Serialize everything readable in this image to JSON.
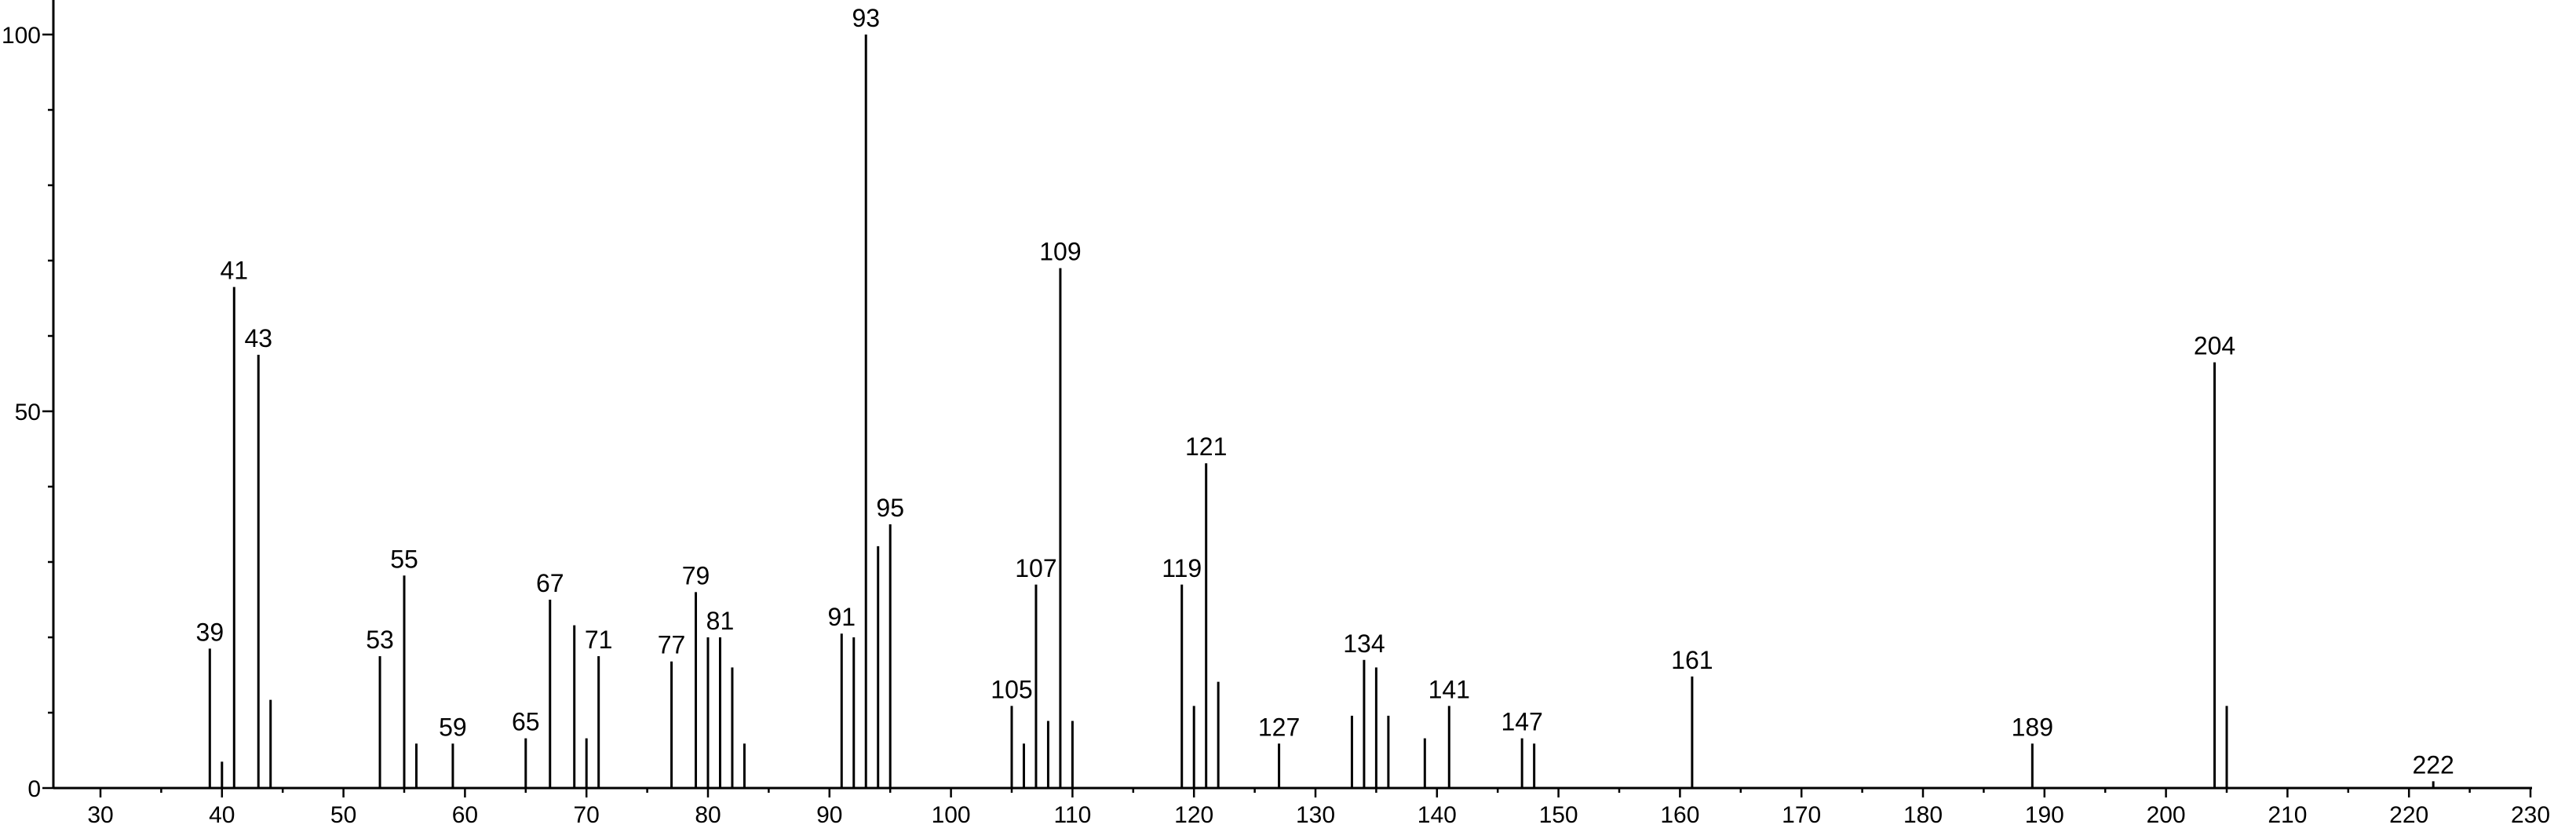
{
  "chart_data": {
    "type": "bar",
    "title": "",
    "xlabel": "",
    "ylabel": "",
    "xlim": [
      26,
      233
    ],
    "ylim": [
      0,
      104
    ],
    "x_major_ticks": [
      30,
      40,
      50,
      60,
      70,
      80,
      90,
      100,
      110,
      120,
      130,
      140,
      150,
      160,
      170,
      180,
      190,
      200,
      210,
      220,
      230
    ],
    "y_major_ticks": [
      0,
      50,
      100
    ],
    "grid": false,
    "legend": "none",
    "peaks": [
      {
        "mz": 39,
        "intensity": 18.5,
        "label": "39"
      },
      {
        "mz": 40,
        "intensity": 3.5
      },
      {
        "mz": 41,
        "intensity": 66.5,
        "label": "41"
      },
      {
        "mz": 43,
        "intensity": 57.5,
        "label": "43"
      },
      {
        "mz": 44,
        "intensity": 11.7
      },
      {
        "mz": 53,
        "intensity": 17.5,
        "label": "53"
      },
      {
        "mz": 55,
        "intensity": 28.2,
        "label": "55"
      },
      {
        "mz": 56,
        "intensity": 5.9
      },
      {
        "mz": 59,
        "intensity": 5.9,
        "label": "59"
      },
      {
        "mz": 65,
        "intensity": 6.6,
        "label": "65"
      },
      {
        "mz": 67,
        "intensity": 25.0,
        "label": "67"
      },
      {
        "mz": 69,
        "intensity": 21.6
      },
      {
        "mz": 70,
        "intensity": 6.6
      },
      {
        "mz": 71,
        "intensity": 17.5,
        "label": "71"
      },
      {
        "mz": 77,
        "intensity": 16.8,
        "label": "77"
      },
      {
        "mz": 79,
        "intensity": 26.0,
        "label": "79"
      },
      {
        "mz": 80,
        "intensity": 20.0
      },
      {
        "mz": 81,
        "intensity": 20.0,
        "label": "81"
      },
      {
        "mz": 82,
        "intensity": 16.0
      },
      {
        "mz": 83,
        "intensity": 5.9
      },
      {
        "mz": 91,
        "intensity": 20.5,
        "label": "91"
      },
      {
        "mz": 92,
        "intensity": 20.0
      },
      {
        "mz": 93,
        "intensity": 100.0,
        "label": "93"
      },
      {
        "mz": 94,
        "intensity": 32.1
      },
      {
        "mz": 95,
        "intensity": 35.0,
        "label": "95"
      },
      {
        "mz": 105,
        "intensity": 10.9,
        "label": "105"
      },
      {
        "mz": 106,
        "intensity": 5.9
      },
      {
        "mz": 107,
        "intensity": 27.0,
        "label": "107"
      },
      {
        "mz": 108,
        "intensity": 8.9
      },
      {
        "mz": 109,
        "intensity": 69.0,
        "label": "109"
      },
      {
        "mz": 110,
        "intensity": 8.9
      },
      {
        "mz": 119,
        "intensity": 27.0,
        "label": "119"
      },
      {
        "mz": 120,
        "intensity": 10.9
      },
      {
        "mz": 121,
        "intensity": 43.1,
        "label": "121"
      },
      {
        "mz": 122,
        "intensity": 14.1
      },
      {
        "mz": 127,
        "intensity": 5.9,
        "label": "127"
      },
      {
        "mz": 133,
        "intensity": 9.6
      },
      {
        "mz": 134,
        "intensity": 17.0,
        "label": "134"
      },
      {
        "mz": 135,
        "intensity": 16.0
      },
      {
        "mz": 136,
        "intensity": 9.6
      },
      {
        "mz": 139,
        "intensity": 6.6
      },
      {
        "mz": 141,
        "intensity": 10.9,
        "label": "141"
      },
      {
        "mz": 147,
        "intensity": 6.6,
        "label": "147"
      },
      {
        "mz": 148,
        "intensity": 5.9
      },
      {
        "mz": 161,
        "intensity": 14.8,
        "label": "161"
      },
      {
        "mz": 189,
        "intensity": 5.9,
        "label": "189"
      },
      {
        "mz": 204,
        "intensity": 56.5,
        "label": "204"
      },
      {
        "mz": 205,
        "intensity": 10.9
      },
      {
        "mz": 222,
        "intensity": 0.9,
        "label": "222"
      }
    ]
  }
}
